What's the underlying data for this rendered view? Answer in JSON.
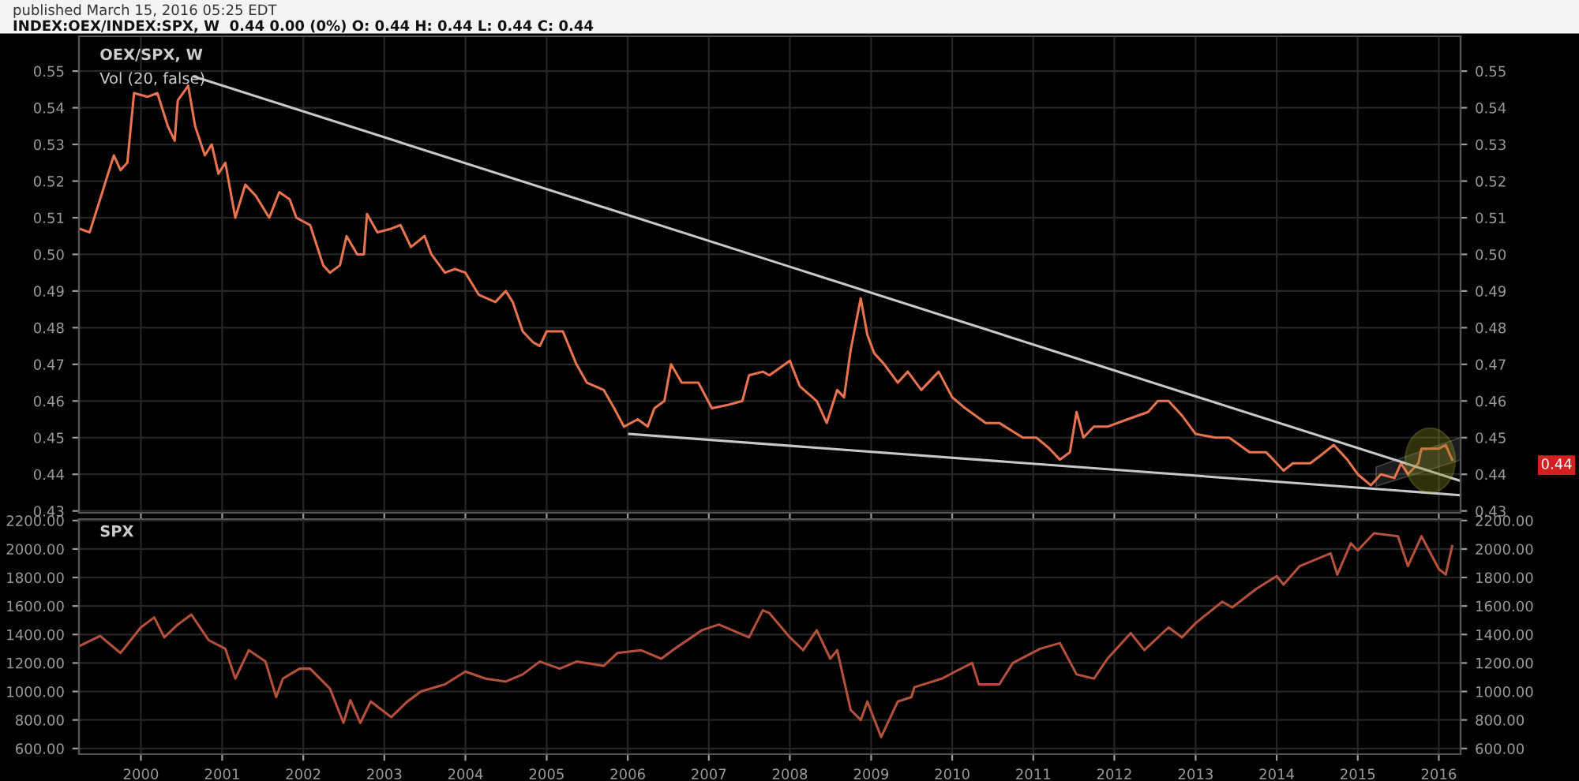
{
  "chart_data": [
    {
      "type": "line",
      "subtitle": "published March 15, 2016 05:25 EDT",
      "title": "INDEX:OEX/INDEX:SPX, W  0.44 0.00 (0%) O: 0.44 H: 0.44 L: 0.44 C: 0.44",
      "annotations": [
        "OEX/SPX, W",
        "Vol (20, false)",
        "0.44"
      ],
      "xlim": [
        "1999-03-28",
        "2016-04-08"
      ],
      "xticks": [
        {
          "value": "2000-01-01",
          "label": null
        },
        {
          "value": "2001-01-01",
          "label": null
        },
        {
          "value": "2002-01-01",
          "label": null
        },
        {
          "value": "2003-01-01",
          "label": null
        },
        {
          "value": "2004-01-01",
          "label": null
        },
        {
          "value": "2005-01-01",
          "label": null
        },
        {
          "value": "2006-01-01",
          "label": null
        },
        {
          "value": "2007-01-01",
          "label": null
        },
        {
          "value": "2008-01-01",
          "label": null
        },
        {
          "value": "2009-01-01",
          "label": null
        },
        {
          "value": "2010-01-01",
          "label": null
        },
        {
          "value": "2011-01-01",
          "label": null
        },
        {
          "value": "2012-01-01",
          "label": null
        },
        {
          "value": "2013-01-01",
          "label": null
        },
        {
          "value": "2014-01-01",
          "label": null
        },
        {
          "value": "2015-01-01",
          "label": null
        },
        {
          "value": "2016-01-01",
          "label": null
        }
      ],
      "ylim": [
        0.4295,
        0.5595
      ],
      "yticks": [
        {
          "value": 0.43,
          "label": "0.43"
        },
        {
          "value": 0.44,
          "label": "0.44"
        },
        {
          "value": 0.45,
          "label": "0.45"
        },
        {
          "value": 0.46,
          "label": "0.46"
        },
        {
          "value": 0.47,
          "label": "0.47"
        },
        {
          "value": 0.48,
          "label": "0.48"
        },
        {
          "value": 0.49,
          "label": "0.49"
        },
        {
          "value": 0.5,
          "label": "0.50"
        },
        {
          "value": 0.51,
          "label": "0.51"
        },
        {
          "value": 0.52,
          "label": "0.52"
        },
        {
          "value": 0.53,
          "label": "0.53"
        },
        {
          "value": 0.54,
          "label": "0.54"
        },
        {
          "value": 0.55,
          "label": "0.55"
        }
      ],
      "y2lim": [
        0.4295,
        0.5595
      ],
      "y2ticks": [
        {
          "value": 0.43,
          "label": "0.43"
        },
        {
          "value": 0.44,
          "label": "0.44"
        },
        {
          "value": 0.45,
          "label": "0.45"
        },
        {
          "value": 0.46,
          "label": "0.46"
        },
        {
          "value": 0.47,
          "label": "0.47"
        },
        {
          "value": 0.48,
          "label": "0.48"
        },
        {
          "value": 0.49,
          "label": "0.49"
        },
        {
          "value": 0.5,
          "label": "0.50"
        },
        {
          "value": 0.51,
          "label": "0.51"
        },
        {
          "value": 0.52,
          "label": "0.52"
        },
        {
          "value": 0.53,
          "label": "0.53"
        },
        {
          "value": 0.54,
          "label": "0.54"
        },
        {
          "value": 0.55,
          "label": "0.55"
        }
      ],
      "tick_labels": "y",
      "grid": true,
      "marker": "none",
      "line_style": "solid",
      "series": [
        {
          "color": "#e8734e",
          "x": [
            "1999-04-01",
            "1999-05-15",
            "1999-07-01",
            "1999-09-01",
            "1999-10-01",
            "1999-11-01",
            "1999-12-01",
            "2000-02-01",
            "2000-03-15",
            "2000-05-01",
            "2000-06-01",
            "2000-06-15",
            "2000-08-01",
            "2000-09-01",
            "2000-10-15",
            "2000-11-15",
            "2000-12-15",
            "2001-01-15",
            "2001-03-01",
            "2001-04-15",
            "2001-06-01",
            "2001-08-01",
            "2001-09-15",
            "2001-11-01",
            "2001-12-01",
            "2002-02-01",
            "2002-04-01",
            "2002-05-01",
            "2002-06-15",
            "2002-07-15",
            "2002-09-01",
            "2002-10-01",
            "2002-10-15",
            "2002-12-01",
            "2003-02-01",
            "2003-03-15",
            "2003-05-01",
            "2003-07-01",
            "2003-08-01",
            "2003-10-01",
            "2003-11-15",
            "2004-01-01",
            "2004-03-01",
            "2004-05-15",
            "2004-07-01",
            "2004-08-01",
            "2004-09-15",
            "2004-11-01",
            "2004-12-01",
            "2005-01-01",
            "2005-03-15",
            "2005-05-15",
            "2005-07-01",
            "2005-09-15",
            "2005-11-01",
            "2005-12-15",
            "2006-02-15",
            "2006-04-01",
            "2006-05-01",
            "2006-06-15",
            "2006-07-15",
            "2006-09-01",
            "2006-11-15",
            "2007-01-15",
            "2007-04-01",
            "2007-06-01",
            "2007-07-01",
            "2007-09-01",
            "2007-10-01",
            "2008-01-01",
            "2008-02-15",
            "2008-05-01",
            "2008-06-15",
            "2008-08-01",
            "2008-09-01",
            "2008-10-01",
            "2008-11-15",
            "2008-12-15",
            "2009-01-15",
            "2009-03-01",
            "2009-05-01",
            "2009-06-15",
            "2009-08-15",
            "2009-11-01",
            "2010-01-01",
            "2010-03-01",
            "2010-06-01",
            "2010-08-01",
            "2010-11-15",
            "2011-01-15",
            "2011-03-15",
            "2011-05-01",
            "2011-06-15",
            "2011-07-15",
            "2011-08-15",
            "2011-10-01",
            "2011-12-01",
            "2012-03-01",
            "2012-06-01",
            "2012-07-15",
            "2012-09-01",
            "2012-11-01",
            "2013-01-01",
            "2013-04-01",
            "2013-06-01",
            "2013-09-01",
            "2013-11-15",
            "2014-02-01",
            "2014-03-15",
            "2014-06-01",
            "2014-07-15",
            "2014-09-15",
            "2014-11-15",
            "2015-01-01",
            "2015-03-01",
            "2015-04-15",
            "2015-06-15",
            "2015-07-15",
            "2015-08-15",
            "2015-10-01",
            "2015-10-15",
            "2016-01-01",
            "2016-02-01",
            "2016-03-01"
          ],
          "values": [
            0.507,
            0.506,
            0.515,
            0.527,
            0.523,
            0.525,
            0.544,
            0.543,
            0.544,
            0.535,
            0.531,
            0.542,
            0.546,
            0.535,
            0.527,
            0.53,
            0.522,
            0.525,
            0.51,
            0.519,
            0.516,
            0.51,
            0.517,
            0.515,
            0.51,
            0.508,
            0.497,
            0.495,
            0.497,
            0.505,
            0.5,
            0.5,
            0.511,
            0.506,
            0.507,
            0.508,
            0.502,
            0.505,
            0.5,
            0.495,
            0.496,
            0.495,
            0.489,
            0.487,
            0.49,
            0.487,
            0.479,
            0.476,
            0.475,
            0.479,
            0.479,
            0.47,
            0.465,
            0.463,
            0.458,
            0.453,
            0.455,
            0.453,
            0.458,
            0.46,
            0.47,
            0.465,
            0.465,
            0.458,
            0.459,
            0.46,
            0.467,
            0.468,
            0.467,
            0.471,
            0.464,
            0.46,
            0.454,
            0.463,
            0.461,
            0.474,
            0.488,
            0.478,
            0.473,
            0.47,
            0.465,
            0.468,
            0.463,
            0.468,
            0.461,
            0.458,
            0.454,
            0.454,
            0.45,
            0.45,
            0.447,
            0.444,
            0.446,
            0.457,
            0.45,
            0.453,
            0.453,
            0.455,
            0.457,
            0.46,
            0.46,
            0.456,
            0.451,
            0.45,
            0.45,
            0.446,
            0.446,
            0.441,
            0.443,
            0.443,
            0.445,
            0.448,
            0.444,
            0.44,
            0.437,
            0.44,
            0.439,
            0.443,
            0.44,
            0.443,
            0.447,
            0.447,
            0.448,
            0.444
          ]
        },
        {
          "type": "line",
          "color": "#c8c8c8",
          "x": [
            "2000-08-28",
            "2016-04-08"
          ],
          "values": [
            0.5485,
            0.4382
          ]
        },
        {
          "type": "line",
          "color": "#c8c8c8",
          "x": [
            "2006-01-08",
            "2016-04-08"
          ],
          "values": [
            0.451,
            0.4343
          ]
        }
      ]
    },
    {
      "type": "line",
      "annotations": [
        "SPX"
      ],
      "xlim": [
        "1999-03-28",
        "2016-04-08"
      ],
      "xticks": [
        {
          "value": "2000-01-01",
          "label": "2000"
        },
        {
          "value": "2001-01-01",
          "label": "2001"
        },
        {
          "value": "2002-01-01",
          "label": "2002"
        },
        {
          "value": "2003-01-01",
          "label": "2003"
        },
        {
          "value": "2004-01-01",
          "label": "2004"
        },
        {
          "value": "2005-01-01",
          "label": "2005"
        },
        {
          "value": "2006-01-01",
          "label": "2006"
        },
        {
          "value": "2007-01-01",
          "label": "2007"
        },
        {
          "value": "2008-01-01",
          "label": "2008"
        },
        {
          "value": "2009-01-01",
          "label": "2009"
        },
        {
          "value": "2010-01-01",
          "label": "2010"
        },
        {
          "value": "2011-01-01",
          "label": "2011"
        },
        {
          "value": "2012-01-01",
          "label": "2012"
        },
        {
          "value": "2013-01-01",
          "label": "2013"
        },
        {
          "value": "2014-01-01",
          "label": "2014"
        },
        {
          "value": "2015-01-01",
          "label": "2015"
        },
        {
          "value": "2016-01-01",
          "label": "2016"
        }
      ],
      "ylim": [
        560,
        2210
      ],
      "yticks": [
        {
          "value": 600,
          "label": "600.00"
        },
        {
          "value": 800,
          "label": "800.00"
        },
        {
          "value": 1000,
          "label": "1000.00"
        },
        {
          "value": 1200,
          "label": "1200.00"
        },
        {
          "value": 1400,
          "label": "1400.00"
        },
        {
          "value": 1600,
          "label": "1600.00"
        },
        {
          "value": 1800,
          "label": "1800.00"
        },
        {
          "value": 2000,
          "label": "2000.00"
        },
        {
          "value": 2200,
          "label": "2200.00"
        }
      ],
      "y2lim": [
        560,
        2210
      ],
      "y2ticks": [
        {
          "value": 600,
          "label": "600.00"
        },
        {
          "value": 800,
          "label": "800.00"
        },
        {
          "value": 1000,
          "label": "1000.00"
        },
        {
          "value": 1200,
          "label": "1200.00"
        },
        {
          "value": 1400,
          "label": "1400.00"
        },
        {
          "value": 1600,
          "label": "1600.00"
        },
        {
          "value": 1800,
          "label": "1800.00"
        },
        {
          "value": 2000,
          "label": "2000.00"
        },
        {
          "value": 2200,
          "label": "2200.00"
        }
      ],
      "grid": true,
      "marker": "none",
      "line_style": "solid",
      "series": [
        {
          "color": "#b5503c",
          "x": [
            "1999-04-01",
            "1999-07-01",
            "1999-10-01",
            "2000-01-01",
            "2000-03-01",
            "2000-04-15",
            "2000-06-15",
            "2000-08-15",
            "2000-11-01",
            "2001-01-15",
            "2001-03-01",
            "2001-05-01",
            "2001-07-15",
            "2001-09-01",
            "2001-10-01",
            "2001-12-15",
            "2002-02-01",
            "2002-05-01",
            "2002-07-01",
            "2002-08-01",
            "2002-09-15",
            "2002-11-01",
            "2003-02-01",
            "2003-04-15",
            "2003-06-15",
            "2003-10-01",
            "2004-01-01",
            "2004-04-01",
            "2004-07-01",
            "2004-09-15",
            "2004-12-01",
            "2005-03-01",
            "2005-05-15",
            "2005-09-15",
            "2005-11-15",
            "2006-03-01",
            "2006-06-01",
            "2006-08-01",
            "2006-12-01",
            "2007-02-15",
            "2007-07-01",
            "2007-09-01",
            "2007-10-01",
            "2008-01-01",
            "2008-03-01",
            "2008-05-01",
            "2008-07-01",
            "2008-08-01",
            "2008-10-01",
            "2008-11-15",
            "2008-12-15",
            "2009-02-15",
            "2009-05-01",
            "2009-07-01",
            "2009-07-15",
            "2009-11-15",
            "2010-01-15",
            "2010-04-01",
            "2010-05-01",
            "2010-08-01",
            "2010-10-01",
            "2011-02-01",
            "2011-05-01",
            "2011-07-15",
            "2011-10-01",
            "2011-12-01",
            "2012-03-15",
            "2012-05-15",
            "2012-09-01",
            "2012-11-01",
            "2013-01-01",
            "2013-05-01",
            "2013-06-15",
            "2013-10-01",
            "2014-01-01",
            "2014-02-01",
            "2014-04-15",
            "2014-09-01",
            "2014-10-01",
            "2014-12-01",
            "2015-01-01",
            "2015-03-15",
            "2015-07-01",
            "2015-08-15",
            "2015-10-15",
            "2016-01-01",
            "2016-02-01",
            "2016-03-01"
          ],
          "values": [
            1320,
            1390,
            1270,
            1450,
            1520,
            1380,
            1470,
            1540,
            1360,
            1300,
            1090,
            1290,
            1210,
            960,
            1090,
            1160,
            1160,
            1020,
            780,
            940,
            780,
            930,
            820,
            930,
            1000,
            1050,
            1140,
            1090,
            1070,
            1120,
            1210,
            1160,
            1210,
            1180,
            1270,
            1290,
            1230,
            1300,
            1430,
            1470,
            1380,
            1570,
            1550,
            1380,
            1290,
            1430,
            1230,
            1290,
            870,
            800,
            930,
            680,
            930,
            960,
            1030,
            1090,
            1140,
            1200,
            1050,
            1050,
            1200,
            1300,
            1340,
            1120,
            1090,
            1230,
            1410,
            1290,
            1450,
            1380,
            1480,
            1630,
            1590,
            1720,
            1810,
            1750,
            1880,
            1970,
            1820,
            2040,
            1990,
            2110,
            2090,
            1880,
            2090,
            1860,
            1820,
            2020
          ]
        }
      ]
    }
  ]
}
